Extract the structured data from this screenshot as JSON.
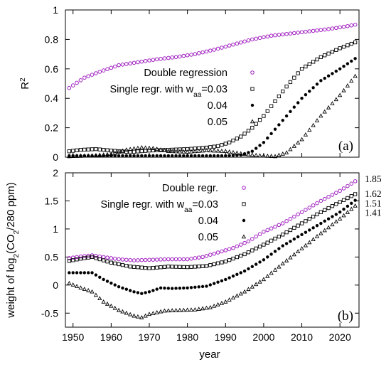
{
  "chart_data": [
    {
      "id": "a",
      "type": "scatter",
      "panel_label": "(a)",
      "ylabel": "R",
      "ylabel_sup": "2",
      "xlim": [
        1948,
        2025
      ],
      "ylim": [
        0,
        1
      ],
      "xticks": [
        "1950",
        "1960",
        "1970",
        "1980",
        "1990",
        "2000",
        "2010",
        "2020"
      ],
      "yticks": [
        "0",
        "0.2",
        "0.4",
        "0.6",
        "0.8",
        "1"
      ],
      "legend_position": "center",
      "series": [
        {
          "name": "Double regression",
          "marker": "circle-open",
          "color": "#a020c0",
          "x": [
            1949,
            1953,
            1957,
            1962,
            1967,
            1972,
            1977,
            1982,
            1987,
            1992,
            1997,
            2002,
            2007,
            2012,
            2017,
            2022,
            2024
          ],
          "y": [
            0.47,
            0.54,
            0.58,
            0.625,
            0.645,
            0.665,
            0.68,
            0.7,
            0.73,
            0.765,
            0.8,
            0.825,
            0.84,
            0.855,
            0.87,
            0.89,
            0.9
          ]
        },
        {
          "name_parts": [
            "Single regr. with w",
            "aa",
            "=0.03"
          ],
          "marker": "square-open",
          "color": "#000000",
          "x": [
            1949,
            1952,
            1956,
            1960,
            1965,
            1970,
            1975,
            1980,
            1985,
            1988,
            1991,
            1994,
            1997,
            2000,
            2003,
            2006,
            2010,
            2015,
            2020,
            2024
          ],
          "y": [
            0.04,
            0.05,
            0.055,
            0.045,
            0.035,
            0.045,
            0.05,
            0.055,
            0.065,
            0.075,
            0.1,
            0.14,
            0.2,
            0.28,
            0.38,
            0.48,
            0.6,
            0.68,
            0.74,
            0.78
          ]
        },
        {
          "name": "0.04",
          "marker": "circle-filled",
          "color": "#000000",
          "x": [
            1949,
            1955,
            1960,
            1965,
            1970,
            1975,
            1980,
            1985,
            1990,
            1994,
            1997,
            2000,
            2003,
            2006,
            2010,
            2015,
            2020,
            2024
          ],
          "y": [
            0.01,
            0.01,
            0.01,
            0.01,
            0.01,
            0.01,
            0.01,
            0.01,
            0.01,
            0.015,
            0.04,
            0.1,
            0.19,
            0.28,
            0.4,
            0.52,
            0.6,
            0.67
          ]
        },
        {
          "name": "0.05",
          "marker": "triangle-open",
          "color": "#000000",
          "x": [
            1949,
            1955,
            1960,
            1964,
            1968,
            1971,
            1975,
            1980,
            1985,
            1990,
            1995,
            1999,
            2003,
            2006,
            2010,
            2015,
            2020,
            2024
          ],
          "y": [
            0.005,
            0.01,
            0.02,
            0.05,
            0.065,
            0.06,
            0.04,
            0.035,
            0.045,
            0.04,
            0.02,
            0.01,
            0.005,
            0.03,
            0.12,
            0.28,
            0.42,
            0.55
          ]
        }
      ]
    },
    {
      "id": "b",
      "type": "scatter",
      "panel_label": "(b)",
      "ylabel_parts": [
        "weight of log",
        "2",
        "(CO",
        "2",
        "/280 ppm)"
      ],
      "xlabel": "year",
      "xlim": [
        1948,
        2025
      ],
      "ylim": [
        -0.75,
        2
      ],
      "xticks": [
        "1950",
        "1960",
        "1970",
        "1980",
        "1990",
        "2000",
        "2010",
        "2020"
      ],
      "yticks": [
        "-0.5",
        "0",
        "0.5",
        "1",
        "1.5",
        "2"
      ],
      "legend_position": "top-left",
      "series": [
        {
          "name": "Double regr.",
          "marker": "circle-open",
          "color": "#a020c0",
          "end_label": "1.85",
          "x": [
            1949,
            1952,
            1955,
            1958,
            1962,
            1966,
            1970,
            1975,
            1980,
            1984,
            1988,
            1992,
            1996,
            2000,
            2005,
            2010,
            2015,
            2020,
            2024
          ],
          "y": [
            0.48,
            0.51,
            0.53,
            0.5,
            0.46,
            0.44,
            0.45,
            0.46,
            0.46,
            0.5,
            0.58,
            0.66,
            0.78,
            0.95,
            1.1,
            1.3,
            1.5,
            1.68,
            1.85
          ]
        },
        {
          "name_parts": [
            "Single regr. with w",
            "aa",
            "=0.03"
          ],
          "marker": "square-open",
          "color": "#000000",
          "end_label": "1.62",
          "x": [
            1949,
            1952,
            1955,
            1960,
            1965,
            1970,
            1975,
            1980,
            1985,
            1990,
            1995,
            2000,
            2005,
            2010,
            2015,
            2020,
            2024
          ],
          "y": [
            0.43,
            0.47,
            0.5,
            0.4,
            0.33,
            0.3,
            0.33,
            0.32,
            0.34,
            0.42,
            0.55,
            0.72,
            0.9,
            1.1,
            1.3,
            1.48,
            1.62
          ]
        },
        {
          "name": "0.04",
          "marker": "circle-filled",
          "color": "#000000",
          "end_label": "1.51",
          "x": [
            1949,
            1952,
            1955,
            1958,
            1962,
            1966,
            1968,
            1970,
            1973,
            1976,
            1980,
            1985,
            1990,
            1995,
            2000,
            2005,
            2010,
            2015,
            2020,
            2024
          ],
          "y": [
            0.22,
            0.22,
            0.22,
            0.1,
            -0.03,
            -0.12,
            -0.15,
            -0.12,
            -0.05,
            -0.06,
            -0.05,
            -0.02,
            0.1,
            0.25,
            0.45,
            0.7,
            0.9,
            1.1,
            1.3,
            1.51
          ]
        },
        {
          "name": "0.05",
          "marker": "triangle-open",
          "color": "#000000",
          "end_label": "1.41",
          "x": [
            1949,
            1952,
            1955,
            1958,
            1962,
            1966,
            1968,
            1970,
            1974,
            1978,
            1982,
            1986,
            1990,
            1995,
            2000,
            2005,
            2010,
            2015,
            2020,
            2024
          ],
          "y": [
            0.03,
            -0.05,
            -0.12,
            -0.3,
            -0.45,
            -0.55,
            -0.58,
            -0.52,
            -0.46,
            -0.45,
            -0.44,
            -0.4,
            -0.3,
            -0.12,
            0.1,
            0.38,
            0.65,
            0.92,
            1.18,
            1.41
          ]
        }
      ]
    }
  ]
}
